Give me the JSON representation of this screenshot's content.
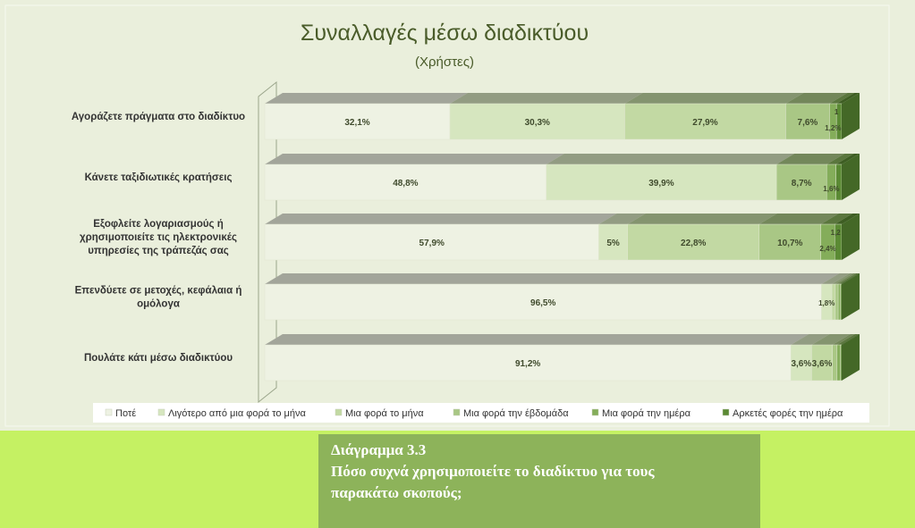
{
  "caption": {
    "figure_number": "Διάγραμμα 3.3",
    "question_line1": "Πόσο συχνά χρησιμοποιείτε το διαδίκτυο για τους",
    "question_line2": "παρακάτω σκοπούς;"
  },
  "colors": {
    "panel_background": "#eaefdc",
    "page_background": "#c5f163",
    "caption_background": "#8db35a",
    "title_color": "#4a5c2a"
  },
  "chart_data": {
    "type": "bar",
    "orientation": "horizontal",
    "stacked": "100%",
    "style": "3d",
    "title": "Συναλλαγές μέσω διαδικτύου",
    "subtitle": "(Χρήστες)",
    "legend_position": "bottom",
    "grid": false,
    "categories": [
      {
        "lines": [
          "Αγοράζετε πράγματα στο διαδίκτυο"
        ]
      },
      {
        "lines": [
          "Κάνετε ταξιδιωτικές κρατήσεις"
        ]
      },
      {
        "lines": [
          "Εξοφλείτε λογαριασμούς ή",
          "χρησιμοποιείτε τις ηλεκτρονικές",
          "υπηρεσίες της τράπεζάς σας"
        ]
      },
      {
        "lines": [
          "Επενδύετε σε μετοχές, κεφάλαια ή",
          "ομόλογα"
        ]
      },
      {
        "lines": [
          "Πουλάτε κάτι μέσω διαδικτύου"
        ]
      }
    ],
    "series": [
      {
        "name": "Ποτέ",
        "color": "#eef2e3",
        "values": [
          32.1,
          48.8,
          57.9,
          96.5,
          91.2
        ],
        "labels": [
          "32,1%",
          "48,8%",
          "57,9%",
          "96,5%",
          "91,2%"
        ]
      },
      {
        "name": "Λιγότερο από μια φορά το μήνα",
        "color": "#d6e6bf",
        "values": [
          30.3,
          39.9,
          5.0,
          1.8,
          3.6
        ],
        "labels": [
          "30,3%",
          "39,9%",
          "5%",
          "1,8%",
          "3,6%"
        ]
      },
      {
        "name": "Μια φορά το μήνα",
        "color": "#c2d9a3",
        "values": [
          27.9,
          0,
          22.8,
          0.6,
          3.6
        ],
        "labels": [
          "27,9%",
          "",
          "22,8%",
          "",
          "3,6%"
        ]
      },
      {
        "name": "Μια φορά την έβδομάδα",
        "color": "#a9c785",
        "values": [
          7.6,
          8.7,
          10.7,
          0.5,
          0.8
        ],
        "labels": [
          "7,6%",
          "8,7%",
          "10,7%",
          "",
          ""
        ]
      },
      {
        "name": "Μια φορά την ημέρα",
        "color": "#84ad5a",
        "values": [
          1.2,
          1.6,
          2.4,
          0.4,
          0.6
        ],
        "labels": [
          "1,2%",
          "1,6%",
          "2,4%",
          "",
          ""
        ]
      },
      {
        "name": "Αρκετές φορές την ημέρα",
        "color": "#5b8a34",
        "values": [
          0.9,
          1.0,
          1.2,
          0.2,
          0.2
        ],
        "labels": [
          "1",
          "",
          "1,2",
          "",
          ""
        ]
      }
    ]
  }
}
